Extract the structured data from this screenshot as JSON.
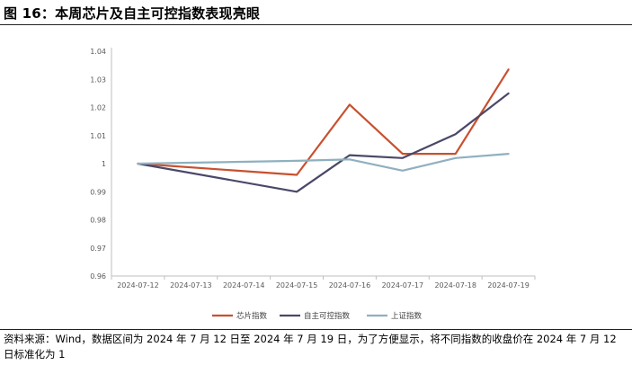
{
  "figure": {
    "title": "图 16：本周芯片及自主可控指数表现亮眼",
    "source": "资料来源：Wind，数据区间为 2024 年 7 月 12 日至 2024 年 7 月 19 日，为了方便显示，将不同指数的收盘价在 2024 年 7 月 12 日标准化为 1"
  },
  "chart_data": {
    "type": "line",
    "title": "",
    "xlabel": "",
    "ylabel": "",
    "x": [
      "2024-07-12",
      "2024-07-13",
      "2024-07-14",
      "2024-07-15",
      "2024-07-16",
      "2024-07-17",
      "2024-07-18",
      "2024-07-19"
    ],
    "y_ticks": [
      "0.96",
      "0.97",
      "0.98",
      "0.99",
      "1",
      "1.01",
      "1.02",
      "1.03",
      "1.04"
    ],
    "ylim": [
      0.96,
      1.04
    ],
    "grid": false,
    "legend_position": "bottom",
    "series": [
      {
        "name": "芯片指数",
        "color": "#C8502E",
        "points": [
          [
            0,
            1.0
          ],
          [
            3,
            0.996
          ],
          [
            4,
            1.021
          ],
          [
            5,
            1.0035
          ],
          [
            6,
            1.0035
          ],
          [
            7,
            1.0335
          ]
        ]
      },
      {
        "name": "自主可控指数",
        "color": "#4A4868",
        "points": [
          [
            0,
            1.0
          ],
          [
            3,
            0.99
          ],
          [
            4,
            1.003
          ],
          [
            5,
            1.002
          ],
          [
            6,
            1.0105
          ],
          [
            7,
            1.025
          ]
        ]
      },
      {
        "name": "上证指数",
        "color": "#8FB0BF",
        "points": [
          [
            0,
            1.0
          ],
          [
            3,
            1.001
          ],
          [
            4,
            1.0015
          ],
          [
            5,
            0.9975
          ],
          [
            6,
            1.002
          ],
          [
            7,
            1.0035
          ]
        ]
      }
    ]
  }
}
